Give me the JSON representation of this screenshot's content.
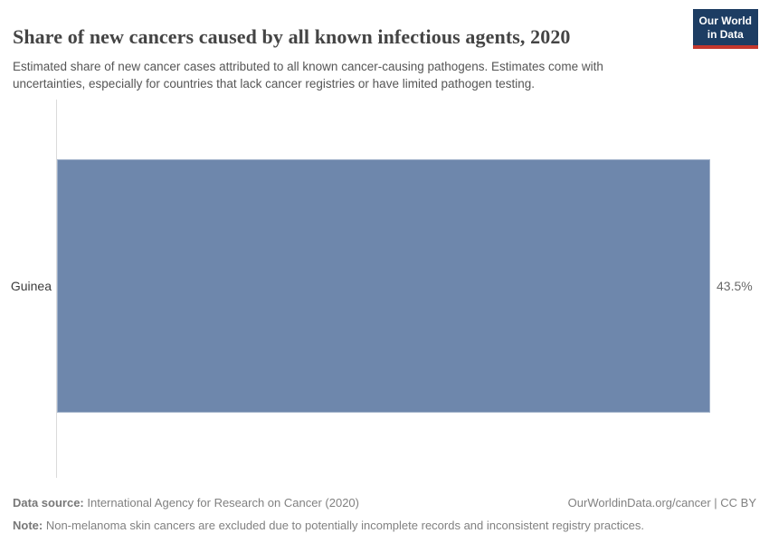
{
  "header": {
    "title": "Share of new cancers caused by all known infectious agents, 2020",
    "subtitle": "Estimated share of new cancer cases attributed to all known cancer-causing pathogens. Estimates come with uncertainties, especially for countries that lack cancer registries or have limited pathogen testing.",
    "logo": {
      "line1": "Our World",
      "line2": "in Data",
      "bg_color": "#1d3d63",
      "stripe_color": "#c4372d"
    }
  },
  "chart_data": {
    "type": "bar",
    "orientation": "horizontal",
    "title": "Share of new cancers caused by all known infectious agents, 2020",
    "categories": [
      "Guinea"
    ],
    "values": [
      43.5
    ],
    "value_labels": [
      "43.5%"
    ],
    "unit": "%",
    "xlim": [
      0,
      43.5
    ],
    "grid": false,
    "legend": "none",
    "bar_color": "#6e87ac",
    "axis_color": "#dbdbdb"
  },
  "footer": {
    "source_label": "Data source:",
    "source_text": " International Agency for Research on Cancer (2020)",
    "right_text": "OurWorldinData.org/cancer | CC BY",
    "note_label": "Note:",
    "note_text": " Non-melanoma skin cancers are excluded due to potentially incomplete records and inconsistent registry practices."
  }
}
